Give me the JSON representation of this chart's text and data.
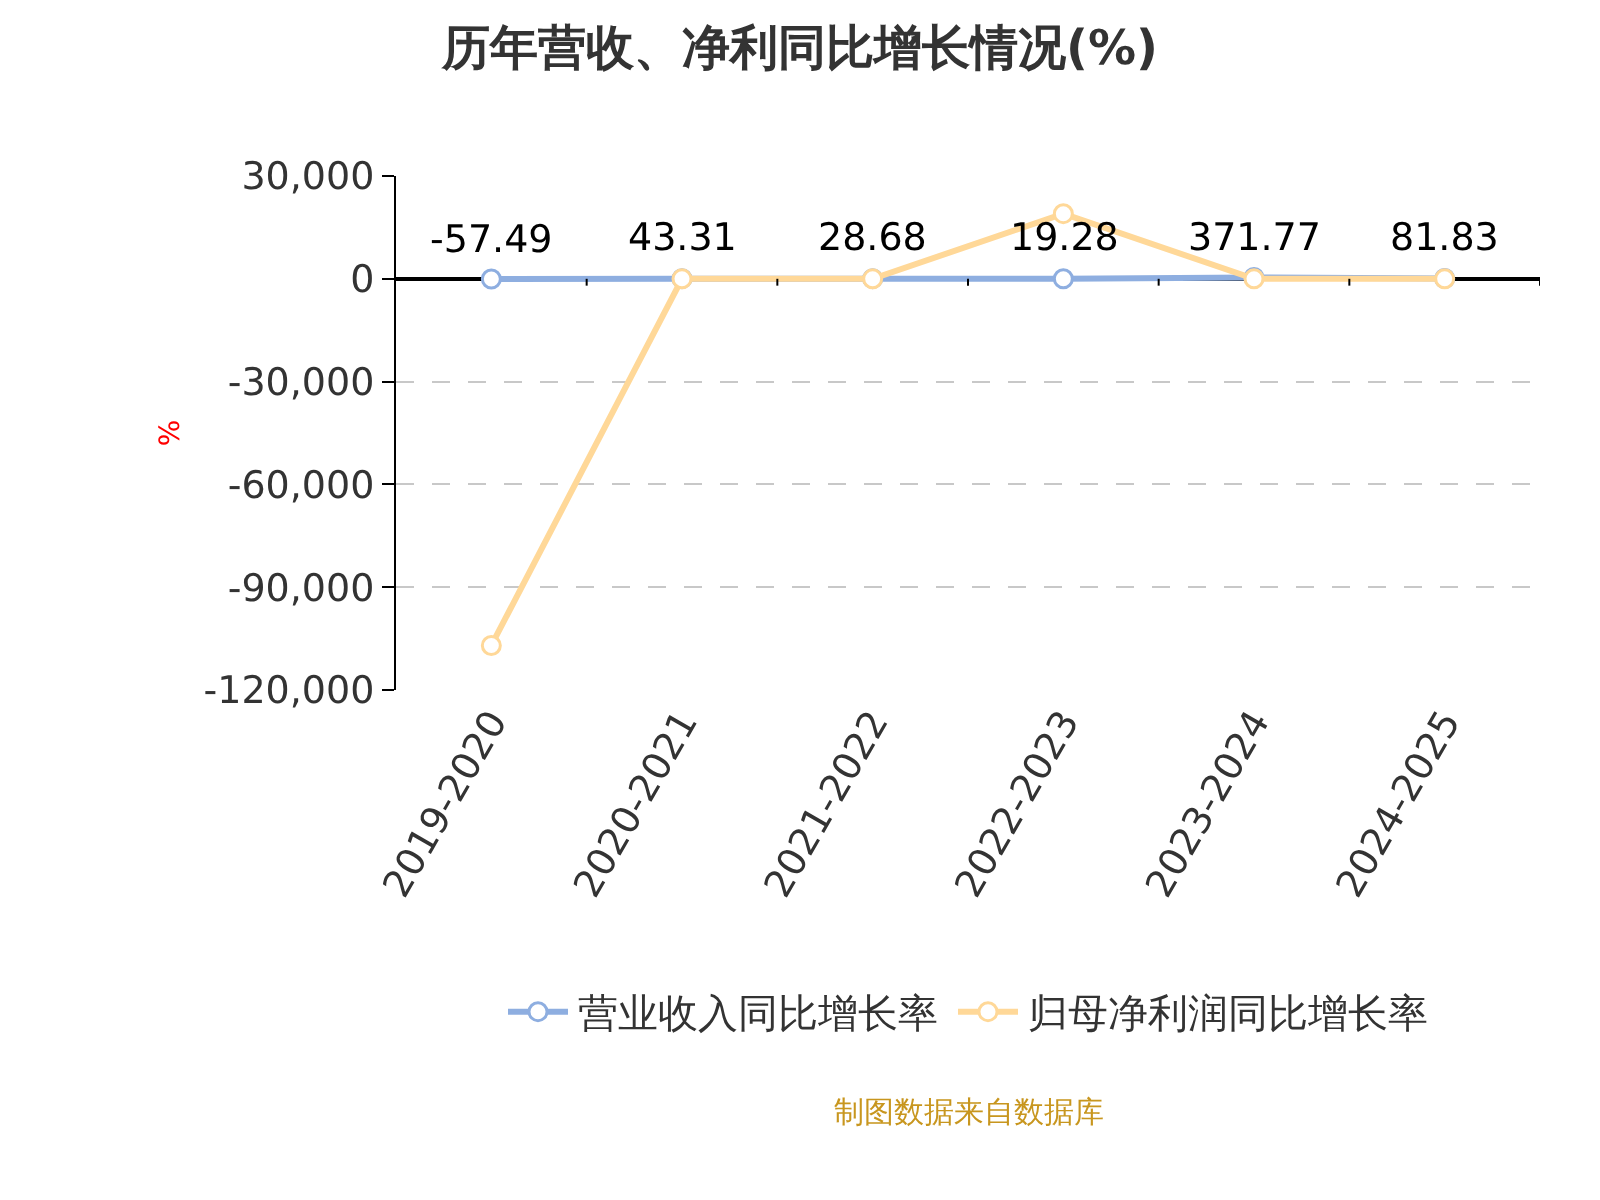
{
  "chart_data": {
    "type": "line",
    "title": "历年营收、净利同比增长情况(%)",
    "ylabel": "%",
    "categories": [
      "2019-2020",
      "2020-2021",
      "2021-2022",
      "2022-2023",
      "2023-2024",
      "2024-2025"
    ],
    "series": [
      {
        "name": "营业收入同比增长率",
        "color": "#8eaee0",
        "values": [
          -57.49,
          43.31,
          28.68,
          19.28,
          371.77,
          81.83
        ],
        "value_labels": [
          "-57.49",
          "43.31",
          "28.68",
          "19.28",
          "371.77",
          "81.83"
        ]
      },
      {
        "name": "归母净利润同比增长率",
        "color": "#ffd898",
        "values": [
          -107000,
          0,
          0,
          19000,
          0,
          0
        ]
      }
    ],
    "ylim": [
      -120000,
      30000
    ],
    "yticks": [
      {
        "value": 30000,
        "label": "30,000"
      },
      0,
      {
        "value": -30000,
        "label": "-30,000"
      },
      {
        "value": -60000,
        "label": "-60,000"
      },
      {
        "value": -90000,
        "label": "-90,000"
      },
      {
        "value": -120000,
        "label": "-120,000"
      }
    ],
    "grid": "y",
    "legend": "bottom",
    "marker": "circle",
    "line_style": "solid",
    "annotations": [
      "制图数据来自数据库"
    ]
  }
}
